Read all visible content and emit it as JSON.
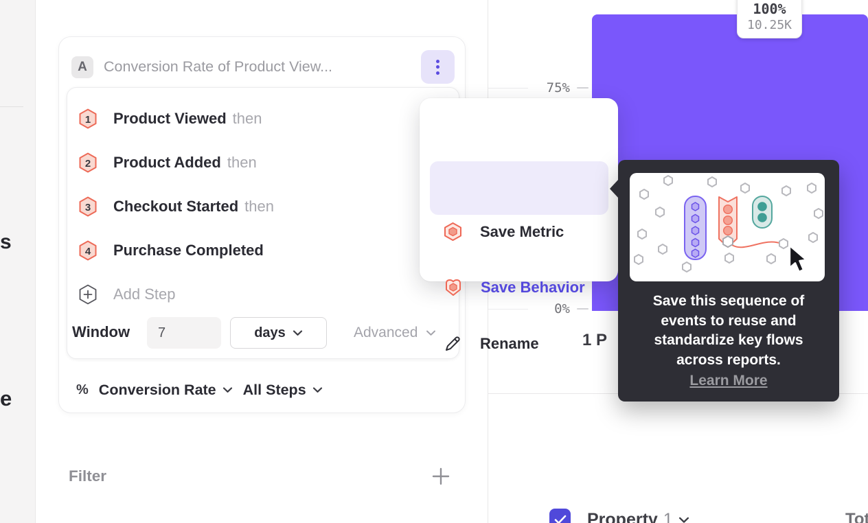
{
  "left_rail": {
    "partial_top": "s",
    "partial_bottom": "e"
  },
  "builder": {
    "series_badge": "A",
    "title": "Conversion Rate of Product View...",
    "steps": [
      {
        "n": "1",
        "label": "Product Viewed",
        "then": "then"
      },
      {
        "n": "2",
        "label": "Product Added",
        "then": "then"
      },
      {
        "n": "3",
        "label": "Checkout Started",
        "then": "then"
      },
      {
        "n": "4",
        "label": "Purchase Completed",
        "then": ""
      }
    ],
    "add_step": "Add Step",
    "window_label": "Window",
    "window_value": "7",
    "window_unit": "days",
    "advanced": "Advanced",
    "metric_symbol": "%",
    "metric_name": "Conversion Rate",
    "metric_scope": "All Steps",
    "filter_label": "Filter"
  },
  "menu": {
    "save_metric": "Save Metric",
    "save_behavior": "Save Behavior",
    "rename": "Rename"
  },
  "tooltip": {
    "line1": "Save this sequence of",
    "line2": "events to reuse and",
    "line3": "standardize key flows",
    "line4": "across reports.",
    "link": "Learn More"
  },
  "chart_data": {
    "type": "bar",
    "categories": [
      "1 P"
    ],
    "series": [
      {
        "name": "Property 1",
        "values": [
          100
        ]
      }
    ],
    "bar_labels": [
      {
        "percent": "100%",
        "count": "10.25K"
      }
    ],
    "yticks_visible": [
      "75%",
      "0%"
    ],
    "ylim": [
      0,
      100
    ],
    "grid": "ticks-only",
    "legend_position": "bottom",
    "bar_color": "#7a57fb"
  },
  "legend": {
    "property_name": "Property",
    "property_index": "1",
    "total_header": "Tot"
  },
  "colors": {
    "accent_purple": "#5b4be0",
    "menu_active_text": "#5347dc",
    "bar_purple": "#7a57fb",
    "coral": "#ed6a57",
    "coral_fill": "#f9d9d1",
    "tooltip_bg": "#2e2e35",
    "text_dark": "#2b2b33",
    "text_gray": "#9b9ba1"
  }
}
